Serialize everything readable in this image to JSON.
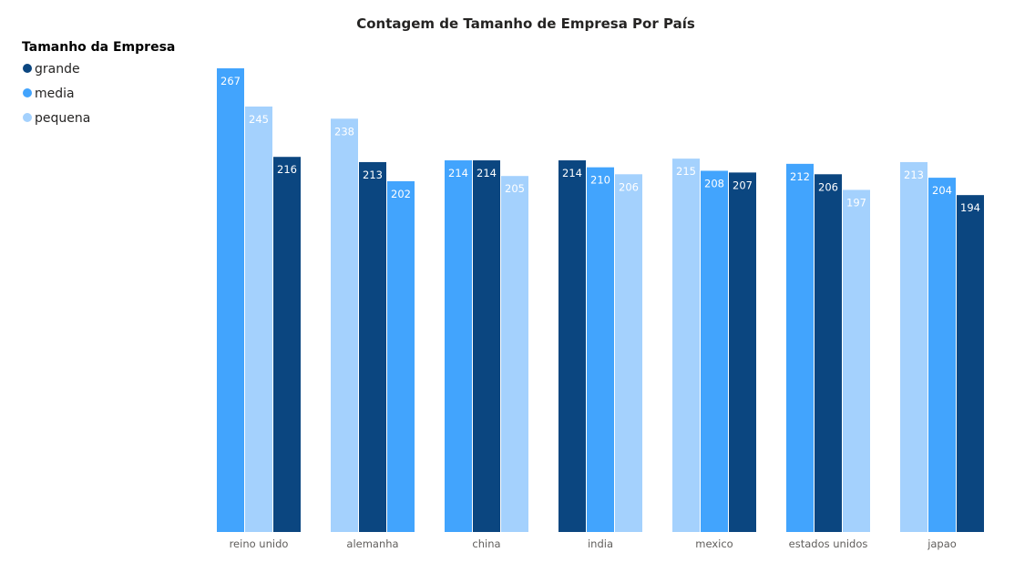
{
  "chart_data": {
    "type": "bar",
    "title": "Contagem de Tamanho de Empresa Por País",
    "xlabel": "",
    "ylabel": "",
    "ylim": [
      0,
      267
    ],
    "grid": false,
    "legend": {
      "title": "Tamanho da Empresa",
      "placement": "top-left",
      "entries": [
        {
          "name": "grande",
          "color": "#0b4680"
        },
        {
          "name": "media",
          "color": "#42a4fd"
        },
        {
          "name": "pequena",
          "color": "#a4d1fd"
        }
      ]
    },
    "groups": [
      {
        "category": "reino unido",
        "bars": [
          {
            "series": "media",
            "value": 267
          },
          {
            "series": "pequena",
            "value": 245
          },
          {
            "series": "grande",
            "value": 216
          }
        ]
      },
      {
        "category": "alemanha",
        "bars": [
          {
            "series": "pequena",
            "value": 238
          },
          {
            "series": "grande",
            "value": 213
          },
          {
            "series": "media",
            "value": 202
          }
        ]
      },
      {
        "category": "china",
        "bars": [
          {
            "series": "media",
            "value": 214
          },
          {
            "series": "grande",
            "value": 214
          },
          {
            "series": "pequena",
            "value": 205
          }
        ]
      },
      {
        "category": "india",
        "bars": [
          {
            "series": "grande",
            "value": 214
          },
          {
            "series": "media",
            "value": 210
          },
          {
            "series": "pequena",
            "value": 206
          }
        ]
      },
      {
        "category": "mexico",
        "bars": [
          {
            "series": "pequena",
            "value": 215
          },
          {
            "series": "media",
            "value": 208
          },
          {
            "series": "grande",
            "value": 207
          }
        ]
      },
      {
        "category": "estados unidos",
        "bars": [
          {
            "series": "media",
            "value": 212
          },
          {
            "series": "grande",
            "value": 206
          },
          {
            "series": "pequena",
            "value": 197
          }
        ]
      },
      {
        "category": "japao",
        "bars": [
          {
            "series": "pequena",
            "value": 213
          },
          {
            "series": "media",
            "value": 204
          },
          {
            "series": "grande",
            "value": 194
          }
        ]
      }
    ]
  }
}
